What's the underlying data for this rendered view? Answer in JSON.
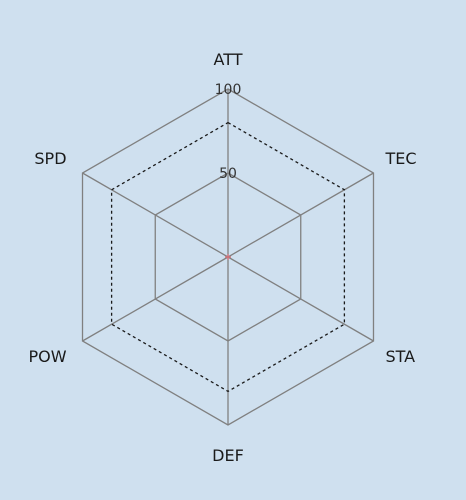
{
  "chart_data": {
    "type": "radar",
    "axes": [
      "ATT",
      "TEC",
      "STA",
      "DEF",
      "POW",
      "SPD"
    ],
    "rmax": 100,
    "grid_levels": [
      50,
      100
    ],
    "tick_labels": [
      "50",
      "100"
    ],
    "series": [
      {
        "values": [
          80,
          80,
          80,
          80,
          80,
          80
        ],
        "line_style": "dotted",
        "color": "#1a1a1a"
      }
    ],
    "grid_color": "#808080",
    "background": "#cfe0ef",
    "center_marker_color": "#e0707a"
  }
}
